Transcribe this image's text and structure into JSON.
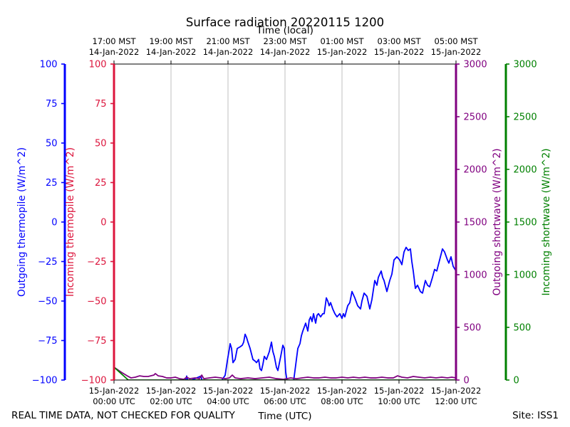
{
  "chart_data": {
    "type": "line",
    "title": "Surface radiation 20220115 1200",
    "xlabel": "Time (UTC)",
    "x2label": "Time (local)",
    "xlim": [
      0,
      12
    ],
    "x_ticks": [
      0,
      2,
      4,
      6,
      8,
      10,
      12
    ],
    "x_tick_labels": [
      [
        "15-Jan-2022",
        "00:00 UTC"
      ],
      [
        "15-Jan-2022",
        "02:00 UTC"
      ],
      [
        "15-Jan-2022",
        "04:00 UTC"
      ],
      [
        "15-Jan-2022",
        "06:00 UTC"
      ],
      [
        "15-Jan-2022",
        "08:00 UTC"
      ],
      [
        "15-Jan-2022",
        "10:00 UTC"
      ],
      [
        "15-Jan-2022",
        "12:00 UTC"
      ]
    ],
    "x2_tick_labels": [
      [
        "17:00 MST",
        "14-Jan-2022"
      ],
      [
        "19:00 MST",
        "14-Jan-2022"
      ],
      [
        "21:00 MST",
        "14-Jan-2022"
      ],
      [
        "23:00 MST",
        "14-Jan-2022"
      ],
      [
        "01:00 MST",
        "15-Jan-2022"
      ],
      [
        "03:00 MST",
        "15-Jan-2022"
      ],
      [
        "05:00 MST",
        "15-Jan-2022"
      ]
    ],
    "grid": {
      "x": true,
      "y": false
    },
    "y_axes": [
      {
        "label": "Outgoing thermopile (W/m^2)",
        "color": "#0000ff",
        "ylim": [
          -100,
          100
        ],
        "ticks": [
          100,
          75,
          50,
          25,
          0,
          -25,
          -50,
          -75,
          -100
        ],
        "tick_labels": [
          "100",
          "75",
          "50",
          "25",
          "0",
          "−25",
          "−50",
          "−75",
          "−100"
        ]
      },
      {
        "label": "Incoming thermopile (W/m^2)",
        "color": "#dc143c",
        "ylim": [
          -100,
          100
        ],
        "ticks": [
          100,
          75,
          50,
          25,
          0,
          -25,
          -50,
          -75,
          -100
        ],
        "tick_labels": [
          "100",
          "75",
          "50",
          "25",
          "0",
          "−25",
          "−50",
          "−75",
          "−100"
        ]
      },
      {
        "label": "Outgoing shortwave (W/m^2)",
        "color": "#800080",
        "ylim": [
          0,
          3000
        ],
        "ticks": [
          0,
          500,
          1000,
          1500,
          2000,
          2500,
          3000
        ],
        "tick_labels": [
          "0",
          "500",
          "1000",
          "1500",
          "2000",
          "2500",
          "3000"
        ]
      },
      {
        "label": "Incoming shortwave (W/m^2)",
        "color": "#008000",
        "ylim": [
          0,
          3000
        ],
        "ticks": [
          0,
          500,
          1000,
          1500,
          2000,
          2500,
          3000
        ],
        "tick_labels": [
          "0",
          "500",
          "1000",
          "1500",
          "2000",
          "2500",
          "3000"
        ]
      }
    ],
    "series": [
      {
        "axis": 0,
        "color": "#0000ff",
        "points": [
          [
            2.5,
            -101
          ],
          [
            2.55,
            -97.5
          ],
          [
            2.6,
            -101
          ],
          [
            3.05,
            -97.5
          ],
          [
            3.1,
            -101
          ],
          [
            3.75,
            -101
          ],
          [
            3.9,
            -97
          ],
          [
            3.975,
            -88
          ],
          [
            4.05,
            -80
          ],
          [
            4.075,
            -77
          ],
          [
            4.125,
            -80
          ],
          [
            4.175,
            -89
          ],
          [
            4.25,
            -87
          ],
          [
            4.325,
            -80
          ],
          [
            4.425,
            -79
          ],
          [
            4.5,
            -78
          ],
          [
            4.55,
            -76
          ],
          [
            4.6,
            -71
          ],
          [
            4.65,
            -73
          ],
          [
            4.7,
            -76
          ],
          [
            4.775,
            -80
          ],
          [
            4.875,
            -87
          ],
          [
            4.95,
            -88
          ],
          [
            5.0,
            -89
          ],
          [
            5.075,
            -87
          ],
          [
            5.125,
            -93
          ],
          [
            5.175,
            -94
          ],
          [
            5.225,
            -90
          ],
          [
            5.275,
            -85
          ],
          [
            5.35,
            -87
          ],
          [
            5.45,
            -82
          ],
          [
            5.525,
            -76
          ],
          [
            5.575,
            -82
          ],
          [
            5.625,
            -85
          ],
          [
            5.7,
            -92
          ],
          [
            5.75,
            -94
          ],
          [
            5.85,
            -85
          ],
          [
            5.925,
            -78
          ],
          [
            5.975,
            -80
          ],
          [
            6.025,
            -95
          ],
          [
            6.075,
            -101
          ],
          [
            6.3,
            -101
          ],
          [
            6.35,
            -94
          ],
          [
            6.45,
            -80
          ],
          [
            6.525,
            -77
          ],
          [
            6.575,
            -72
          ],
          [
            6.625,
            -69
          ],
          [
            6.725,
            -64
          ],
          [
            6.8,
            -69
          ],
          [
            6.85,
            -62
          ],
          [
            6.9,
            -60
          ],
          [
            6.95,
            -63
          ],
          [
            7.0,
            -58
          ],
          [
            7.075,
            -64
          ],
          [
            7.125,
            -59
          ],
          [
            7.175,
            -58
          ],
          [
            7.25,
            -60
          ],
          [
            7.325,
            -58
          ],
          [
            7.375,
            -58
          ],
          [
            7.45,
            -48
          ],
          [
            7.5,
            -50
          ],
          [
            7.55,
            -53
          ],
          [
            7.6,
            -51
          ],
          [
            7.675,
            -55
          ],
          [
            7.75,
            -58
          ],
          [
            7.825,
            -60
          ],
          [
            7.925,
            -58
          ],
          [
            8.0,
            -61
          ],
          [
            8.05,
            -58
          ],
          [
            8.1,
            -60
          ],
          [
            8.2,
            -53
          ],
          [
            8.275,
            -51
          ],
          [
            8.35,
            -44
          ],
          [
            8.45,
            -48
          ],
          [
            8.55,
            -53
          ],
          [
            8.65,
            -55
          ],
          [
            8.7,
            -50
          ],
          [
            8.775,
            -45
          ],
          [
            8.875,
            -47
          ],
          [
            8.975,
            -55
          ],
          [
            9.05,
            -49
          ],
          [
            9.15,
            -37
          ],
          [
            9.225,
            -40
          ],
          [
            9.275,
            -35
          ],
          [
            9.375,
            -31
          ],
          [
            9.425,
            -35
          ],
          [
            9.475,
            -37
          ],
          [
            9.575,
            -44
          ],
          [
            9.675,
            -37
          ],
          [
            9.75,
            -33
          ],
          [
            9.825,
            -24
          ],
          [
            9.925,
            -22
          ],
          [
            10.025,
            -24
          ],
          [
            10.1,
            -27
          ],
          [
            10.175,
            -19
          ],
          [
            10.25,
            -16
          ],
          [
            10.325,
            -18
          ],
          [
            10.4,
            -17
          ],
          [
            10.45,
            -25
          ],
          [
            10.5,
            -31
          ],
          [
            10.575,
            -42
          ],
          [
            10.65,
            -40
          ],
          [
            10.75,
            -44
          ],
          [
            10.825,
            -45
          ],
          [
            10.925,
            -37
          ],
          [
            11.0,
            -40
          ],
          [
            11.075,
            -41
          ],
          [
            11.175,
            -35
          ],
          [
            11.25,
            -30
          ],
          [
            11.325,
            -31
          ],
          [
            11.425,
            -24
          ],
          [
            11.525,
            -17
          ],
          [
            11.6,
            -19
          ],
          [
            11.7,
            -24
          ],
          [
            11.75,
            -26
          ],
          [
            11.825,
            -22
          ],
          [
            11.9,
            -28
          ],
          [
            12.0,
            -31
          ]
        ]
      },
      {
        "axis": 1,
        "color": "#dc143c",
        "points": []
      },
      {
        "axis": 2,
        "color": "#800080",
        "points": [
          [
            0,
            122
          ],
          [
            0.25,
            75
          ],
          [
            0.5,
            34
          ],
          [
            0.6,
            20
          ],
          [
            0.75,
            27
          ],
          [
            0.9,
            40
          ],
          [
            1.05,
            34
          ],
          [
            1.2,
            34
          ],
          [
            1.4,
            47
          ],
          [
            1.45,
            61
          ],
          [
            1.55,
            40
          ],
          [
            1.7,
            34
          ],
          [
            1.85,
            20
          ],
          [
            2.0,
            20
          ],
          [
            2.15,
            27
          ],
          [
            2.3,
            13
          ],
          [
            2.45,
            7
          ],
          [
            2.55,
            27
          ],
          [
            2.65,
            13
          ],
          [
            2.85,
            20
          ],
          [
            3.0,
            13
          ],
          [
            3.08,
            47
          ],
          [
            3.15,
            13
          ],
          [
            3.35,
            20
          ],
          [
            3.55,
            27
          ],
          [
            3.75,
            20
          ],
          [
            3.9,
            13
          ],
          [
            4.05,
            20
          ],
          [
            4.15,
            47
          ],
          [
            4.25,
            20
          ],
          [
            4.45,
            13
          ],
          [
            4.7,
            20
          ],
          [
            4.95,
            13
          ],
          [
            5.2,
            20
          ],
          [
            5.45,
            27
          ],
          [
            5.7,
            13
          ],
          [
            5.95,
            7
          ],
          [
            6.2,
            20
          ],
          [
            6.4,
            13
          ],
          [
            6.6,
            20
          ],
          [
            6.8,
            27
          ],
          [
            7.0,
            20
          ],
          [
            7.2,
            20
          ],
          [
            7.4,
            27
          ],
          [
            7.6,
            20
          ],
          [
            7.8,
            20
          ],
          [
            8.0,
            27
          ],
          [
            8.2,
            20
          ],
          [
            8.4,
            27
          ],
          [
            8.6,
            20
          ],
          [
            8.8,
            27
          ],
          [
            9.0,
            20
          ],
          [
            9.2,
            20
          ],
          [
            9.4,
            27
          ],
          [
            9.6,
            20
          ],
          [
            9.8,
            20
          ],
          [
            9.95,
            40
          ],
          [
            10.1,
            27
          ],
          [
            10.3,
            20
          ],
          [
            10.5,
            34
          ],
          [
            10.7,
            27
          ],
          [
            10.9,
            20
          ],
          [
            11.1,
            27
          ],
          [
            11.3,
            20
          ],
          [
            11.5,
            27
          ],
          [
            11.7,
            20
          ],
          [
            11.85,
            27
          ],
          [
            12.0,
            20
          ]
        ]
      },
      {
        "axis": 3,
        "color": "#008000",
        "points": [
          [
            0,
            122
          ],
          [
            0.5,
            0
          ],
          [
            12,
            0
          ]
        ]
      }
    ]
  },
  "footer": {
    "disclaimer": "REAL TIME DATA, NOT CHECKED FOR QUALITY",
    "site": "Site: ISS1"
  }
}
